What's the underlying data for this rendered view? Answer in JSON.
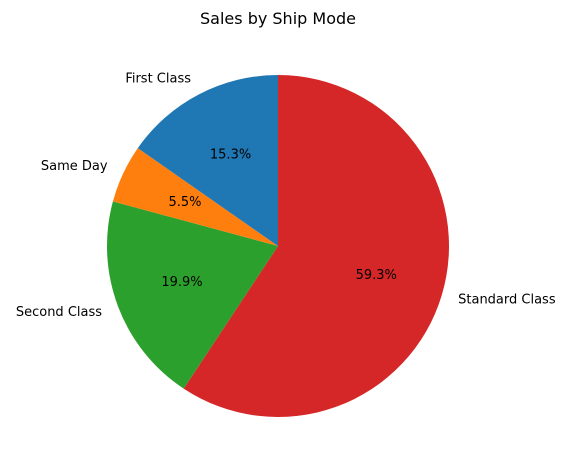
{
  "chart_data": {
    "type": "pie",
    "title": "Sales by Ship Mode",
    "categories": [
      "Standard Class",
      "Second Class",
      "Same Day",
      "First Class"
    ],
    "values": [
      59.3,
      19.9,
      5.5,
      15.3
    ],
    "value_labels": [
      "59.3%",
      "19.9%",
      "5.5%",
      "15.3%"
    ],
    "colors": [
      "#d62728",
      "#2ca02c",
      "#ff7f0e",
      "#1f77b4"
    ],
    "start_angle_deg": 90,
    "direction": "clockwise",
    "legend": "none"
  }
}
